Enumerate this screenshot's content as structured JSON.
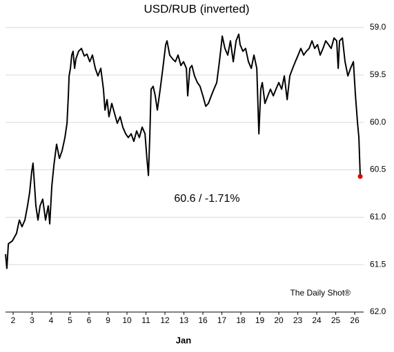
{
  "chart_data": {
    "type": "line",
    "title": "USD/RUB (inverted)",
    "xlabel": "Jan",
    "annotation": "60.6  /  -1.71%",
    "source": "The Daily Shot®",
    "color": "#000000",
    "end_marker_color": "#e00000",
    "y_inverted": true,
    "grid": true,
    "ylim": [
      59,
      62
    ],
    "yticks": [
      {
        "value": 59,
        "label": "59.0"
      },
      59.5,
      {
        "value": 60,
        "label": "60.0"
      },
      60.5,
      {
        "value": 61,
        "label": "61.0"
      },
      61.5,
      {
        "value": 62,
        "label": "62.0"
      }
    ],
    "xlim": [
      -0.4,
      18.47
    ],
    "xticks": [
      {
        "value": 0,
        "label": "2"
      },
      {
        "value": 1,
        "label": "3"
      },
      {
        "value": 2,
        "label": "4"
      },
      {
        "value": 3,
        "label": "5"
      },
      {
        "value": 4,
        "label": "6"
      },
      {
        "value": 5,
        "label": "9"
      },
      {
        "value": 6,
        "label": "10"
      },
      {
        "value": 7,
        "label": "11"
      },
      {
        "value": 8,
        "label": "12"
      },
      {
        "value": 9,
        "label": "13"
      },
      {
        "value": 10,
        "label": "16"
      },
      {
        "value": 11,
        "label": "17"
      },
      {
        "value": 12,
        "label": "18"
      },
      {
        "value": 13,
        "label": "19"
      },
      {
        "value": 14,
        "label": "20"
      },
      {
        "value": 15,
        "label": "23"
      },
      {
        "value": 16,
        "label": "24"
      },
      {
        "value": 17,
        "label": "25"
      },
      {
        "value": 18,
        "label": "26"
      }
    ],
    "x": [
      -0.4,
      -0.33,
      -0.25,
      -0.04,
      0.18,
      0.33,
      0.47,
      0.62,
      0.76,
      0.87,
      0.98,
      1.05,
      1.13,
      1.2,
      1.31,
      1.42,
      1.56,
      1.71,
      1.85,
      1.93,
      2.04,
      2.15,
      2.29,
      2.44,
      2.58,
      2.73,
      2.84,
      2.91,
      2.95,
      3.02,
      3.09,
      3.16,
      3.24,
      3.31,
      3.45,
      3.6,
      3.75,
      3.89,
      4.04,
      4.18,
      4.33,
      4.47,
      4.62,
      4.76,
      4.84,
      4.95,
      5.05,
      5.2,
      5.35,
      5.49,
      5.64,
      5.78,
      5.93,
      6.07,
      6.22,
      6.36,
      6.51,
      6.65,
      6.8,
      6.95,
      7.05,
      7.13,
      7.2,
      7.27,
      7.38,
      7.49,
      7.6,
      7.75,
      7.89,
      8.04,
      8.11,
      8.25,
      8.4,
      8.55,
      8.69,
      8.84,
      8.98,
      9.13,
      9.2,
      9.31,
      9.42,
      9.56,
      9.71,
      9.85,
      10,
      10.15,
      10.29,
      10.44,
      10.58,
      10.73,
      10.87,
      10.95,
      11.02,
      11.16,
      11.31,
      11.45,
      11.6,
      11.75,
      11.89,
      11.96,
      12.11,
      12.25,
      12.4,
      12.55,
      12.69,
      12.84,
      12.95,
      13.05,
      13.13,
      13.27,
      13.42,
      13.56,
      13.71,
      13.85,
      14,
      14.15,
      14.29,
      14.44,
      14.58,
      14.73,
      14.87,
      15.02,
      15.16,
      15.31,
      15.45,
      15.6,
      15.75,
      15.89,
      16.04,
      16.18,
      16.33,
      16.47,
      16.62,
      16.76,
      16.91,
      17.05,
      17.13,
      17.2,
      17.35,
      17.49,
      17.64,
      17.78,
      17.93,
      18.04,
      18.15,
      18.22,
      18.29
    ],
    "values": [
      61.39,
      61.54,
      61.28,
      61.25,
      61.17,
      61.03,
      61.1,
      61.03,
      60.88,
      60.74,
      60.52,
      60.43,
      60.67,
      60.88,
      61.03,
      60.88,
      60.81,
      61.03,
      60.88,
      61.07,
      60.67,
      60.45,
      60.23,
      60.38,
      60.3,
      60.16,
      60.01,
      59.72,
      59.51,
      59.43,
      59.29,
      59.25,
      59.43,
      59.33,
      59.25,
      59.22,
      59.3,
      59.28,
      59.36,
      59.29,
      59.43,
      59.51,
      59.43,
      59.65,
      59.87,
      59.76,
      59.94,
      59.8,
      59.91,
      60.01,
      59.94,
      60.05,
      60.12,
      60.16,
      60.12,
      60.2,
      60.09,
      60.16,
      60.05,
      60.12,
      60.38,
      60.56,
      60.16,
      59.65,
      59.62,
      59.72,
      59.87,
      59.65,
      59.43,
      59.18,
      59.14,
      59.29,
      59.33,
      59.36,
      59.29,
      59.4,
      59.36,
      59.43,
      59.72,
      59.43,
      59.4,
      59.51,
      59.58,
      59.62,
      59.72,
      59.83,
      59.8,
      59.72,
      59.65,
      59.58,
      59.36,
      59.22,
      59.09,
      59.22,
      59.29,
      59.14,
      59.36,
      59.14,
      59.07,
      59.18,
      59.25,
      59.22,
      59.36,
      59.43,
      59.29,
      59.43,
      60.12,
      59.65,
      59.58,
      59.8,
      59.72,
      59.65,
      59.72,
      59.65,
      59.58,
      59.65,
      59.51,
      59.76,
      59.51,
      59.43,
      59.36,
      59.29,
      59.22,
      59.29,
      59.25,
      59.22,
      59.14,
      59.22,
      59.18,
      59.29,
      59.22,
      59.14,
      59.18,
      59.22,
      59.11,
      59.14,
      59.43,
      59.14,
      59.11,
      59.36,
      59.51,
      59.43,
      59.36,
      59.72,
      60.01,
      60.16,
      60.57
    ]
  }
}
